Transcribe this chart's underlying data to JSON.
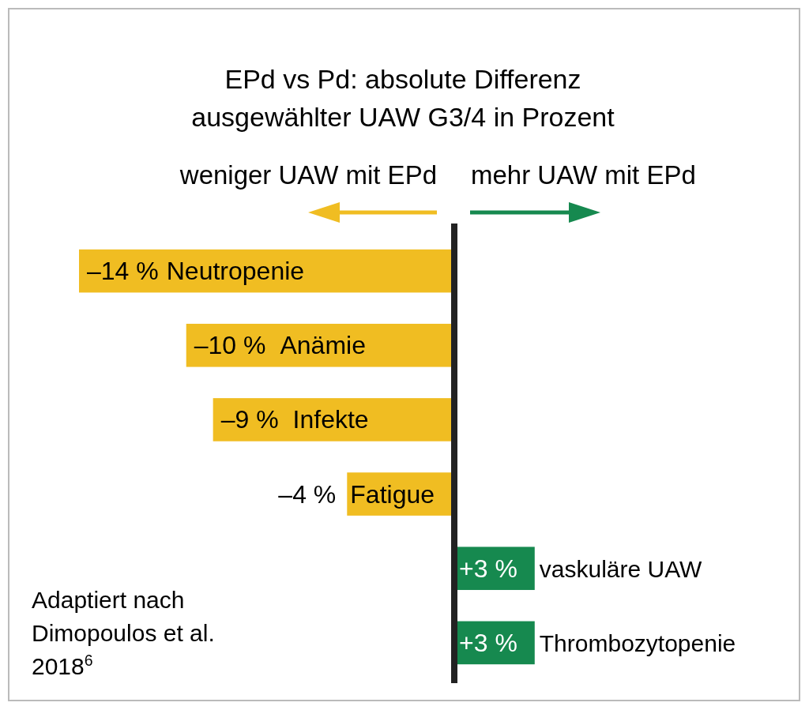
{
  "chart_data": {
    "type": "bar",
    "orientation": "horizontal",
    "title": "EPd vs Pd: absolute Differenz\nausgewählter UAW G3/4 in Prozent",
    "categories": [
      "Neutropenie",
      "Anämie",
      "Infekte",
      "Fatigue",
      "vaskuläre UAW",
      "Thrombozytopenie"
    ],
    "values": [
      -14,
      -10,
      -9,
      -4,
      3,
      3
    ],
    "colors": [
      "#f0bd22",
      "#f0bd22",
      "#f0bd22",
      "#f0bd22",
      "#16894f",
      "#16894f"
    ],
    "value_labels": [
      "–14 %",
      "–10 %",
      "–9 %",
      "–4 %",
      "+3 %",
      "+3 %"
    ],
    "annotations": [
      "weniger UAW mit EPd",
      "mehr UAW mit EPd",
      "Adaptiert nach\nDimopoulos et al.\n2018$^{6}$"
    ]
  }
}
